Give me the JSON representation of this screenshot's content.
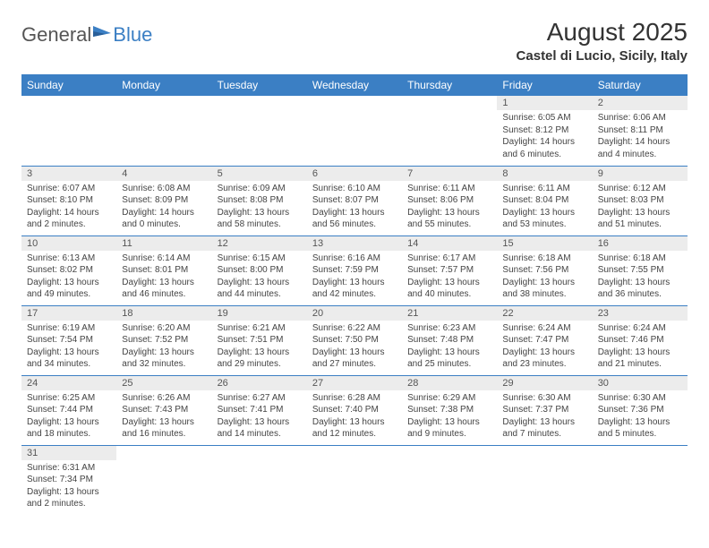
{
  "logo": {
    "text1": "General",
    "text2": "Blue"
  },
  "title": "August 2025",
  "location": "Castel di Lucio, Sicily, Italy",
  "colors": {
    "header_bg": "#3b7fc4",
    "daynum_bg": "#ececec",
    "border": "#3b7fc4"
  },
  "daynames": [
    "Sunday",
    "Monday",
    "Tuesday",
    "Wednesday",
    "Thursday",
    "Friday",
    "Saturday"
  ],
  "weeks": [
    [
      null,
      null,
      null,
      null,
      null,
      {
        "n": "1",
        "sr": "Sunrise: 6:05 AM",
        "ss": "Sunset: 8:12 PM",
        "d1": "Daylight: 14 hours",
        "d2": "and 6 minutes."
      },
      {
        "n": "2",
        "sr": "Sunrise: 6:06 AM",
        "ss": "Sunset: 8:11 PM",
        "d1": "Daylight: 14 hours",
        "d2": "and 4 minutes."
      }
    ],
    [
      {
        "n": "3",
        "sr": "Sunrise: 6:07 AM",
        "ss": "Sunset: 8:10 PM",
        "d1": "Daylight: 14 hours",
        "d2": "and 2 minutes."
      },
      {
        "n": "4",
        "sr": "Sunrise: 6:08 AM",
        "ss": "Sunset: 8:09 PM",
        "d1": "Daylight: 14 hours",
        "d2": "and 0 minutes."
      },
      {
        "n": "5",
        "sr": "Sunrise: 6:09 AM",
        "ss": "Sunset: 8:08 PM",
        "d1": "Daylight: 13 hours",
        "d2": "and 58 minutes."
      },
      {
        "n": "6",
        "sr": "Sunrise: 6:10 AM",
        "ss": "Sunset: 8:07 PM",
        "d1": "Daylight: 13 hours",
        "d2": "and 56 minutes."
      },
      {
        "n": "7",
        "sr": "Sunrise: 6:11 AM",
        "ss": "Sunset: 8:06 PM",
        "d1": "Daylight: 13 hours",
        "d2": "and 55 minutes."
      },
      {
        "n": "8",
        "sr": "Sunrise: 6:11 AM",
        "ss": "Sunset: 8:04 PM",
        "d1": "Daylight: 13 hours",
        "d2": "and 53 minutes."
      },
      {
        "n": "9",
        "sr": "Sunrise: 6:12 AM",
        "ss": "Sunset: 8:03 PM",
        "d1": "Daylight: 13 hours",
        "d2": "and 51 minutes."
      }
    ],
    [
      {
        "n": "10",
        "sr": "Sunrise: 6:13 AM",
        "ss": "Sunset: 8:02 PM",
        "d1": "Daylight: 13 hours",
        "d2": "and 49 minutes."
      },
      {
        "n": "11",
        "sr": "Sunrise: 6:14 AM",
        "ss": "Sunset: 8:01 PM",
        "d1": "Daylight: 13 hours",
        "d2": "and 46 minutes."
      },
      {
        "n": "12",
        "sr": "Sunrise: 6:15 AM",
        "ss": "Sunset: 8:00 PM",
        "d1": "Daylight: 13 hours",
        "d2": "and 44 minutes."
      },
      {
        "n": "13",
        "sr": "Sunrise: 6:16 AM",
        "ss": "Sunset: 7:59 PM",
        "d1": "Daylight: 13 hours",
        "d2": "and 42 minutes."
      },
      {
        "n": "14",
        "sr": "Sunrise: 6:17 AM",
        "ss": "Sunset: 7:57 PM",
        "d1": "Daylight: 13 hours",
        "d2": "and 40 minutes."
      },
      {
        "n": "15",
        "sr": "Sunrise: 6:18 AM",
        "ss": "Sunset: 7:56 PM",
        "d1": "Daylight: 13 hours",
        "d2": "and 38 minutes."
      },
      {
        "n": "16",
        "sr": "Sunrise: 6:18 AM",
        "ss": "Sunset: 7:55 PM",
        "d1": "Daylight: 13 hours",
        "d2": "and 36 minutes."
      }
    ],
    [
      {
        "n": "17",
        "sr": "Sunrise: 6:19 AM",
        "ss": "Sunset: 7:54 PM",
        "d1": "Daylight: 13 hours",
        "d2": "and 34 minutes."
      },
      {
        "n": "18",
        "sr": "Sunrise: 6:20 AM",
        "ss": "Sunset: 7:52 PM",
        "d1": "Daylight: 13 hours",
        "d2": "and 32 minutes."
      },
      {
        "n": "19",
        "sr": "Sunrise: 6:21 AM",
        "ss": "Sunset: 7:51 PM",
        "d1": "Daylight: 13 hours",
        "d2": "and 29 minutes."
      },
      {
        "n": "20",
        "sr": "Sunrise: 6:22 AM",
        "ss": "Sunset: 7:50 PM",
        "d1": "Daylight: 13 hours",
        "d2": "and 27 minutes."
      },
      {
        "n": "21",
        "sr": "Sunrise: 6:23 AM",
        "ss": "Sunset: 7:48 PM",
        "d1": "Daylight: 13 hours",
        "d2": "and 25 minutes."
      },
      {
        "n": "22",
        "sr": "Sunrise: 6:24 AM",
        "ss": "Sunset: 7:47 PM",
        "d1": "Daylight: 13 hours",
        "d2": "and 23 minutes."
      },
      {
        "n": "23",
        "sr": "Sunrise: 6:24 AM",
        "ss": "Sunset: 7:46 PM",
        "d1": "Daylight: 13 hours",
        "d2": "and 21 minutes."
      }
    ],
    [
      {
        "n": "24",
        "sr": "Sunrise: 6:25 AM",
        "ss": "Sunset: 7:44 PM",
        "d1": "Daylight: 13 hours",
        "d2": "and 18 minutes."
      },
      {
        "n": "25",
        "sr": "Sunrise: 6:26 AM",
        "ss": "Sunset: 7:43 PM",
        "d1": "Daylight: 13 hours",
        "d2": "and 16 minutes."
      },
      {
        "n": "26",
        "sr": "Sunrise: 6:27 AM",
        "ss": "Sunset: 7:41 PM",
        "d1": "Daylight: 13 hours",
        "d2": "and 14 minutes."
      },
      {
        "n": "27",
        "sr": "Sunrise: 6:28 AM",
        "ss": "Sunset: 7:40 PM",
        "d1": "Daylight: 13 hours",
        "d2": "and 12 minutes."
      },
      {
        "n": "28",
        "sr": "Sunrise: 6:29 AM",
        "ss": "Sunset: 7:38 PM",
        "d1": "Daylight: 13 hours",
        "d2": "and 9 minutes."
      },
      {
        "n": "29",
        "sr": "Sunrise: 6:30 AM",
        "ss": "Sunset: 7:37 PM",
        "d1": "Daylight: 13 hours",
        "d2": "and 7 minutes."
      },
      {
        "n": "30",
        "sr": "Sunrise: 6:30 AM",
        "ss": "Sunset: 7:36 PM",
        "d1": "Daylight: 13 hours",
        "d2": "and 5 minutes."
      }
    ],
    [
      {
        "n": "31",
        "sr": "Sunrise: 6:31 AM",
        "ss": "Sunset: 7:34 PM",
        "d1": "Daylight: 13 hours",
        "d2": "and 2 minutes."
      },
      null,
      null,
      null,
      null,
      null,
      null
    ]
  ]
}
